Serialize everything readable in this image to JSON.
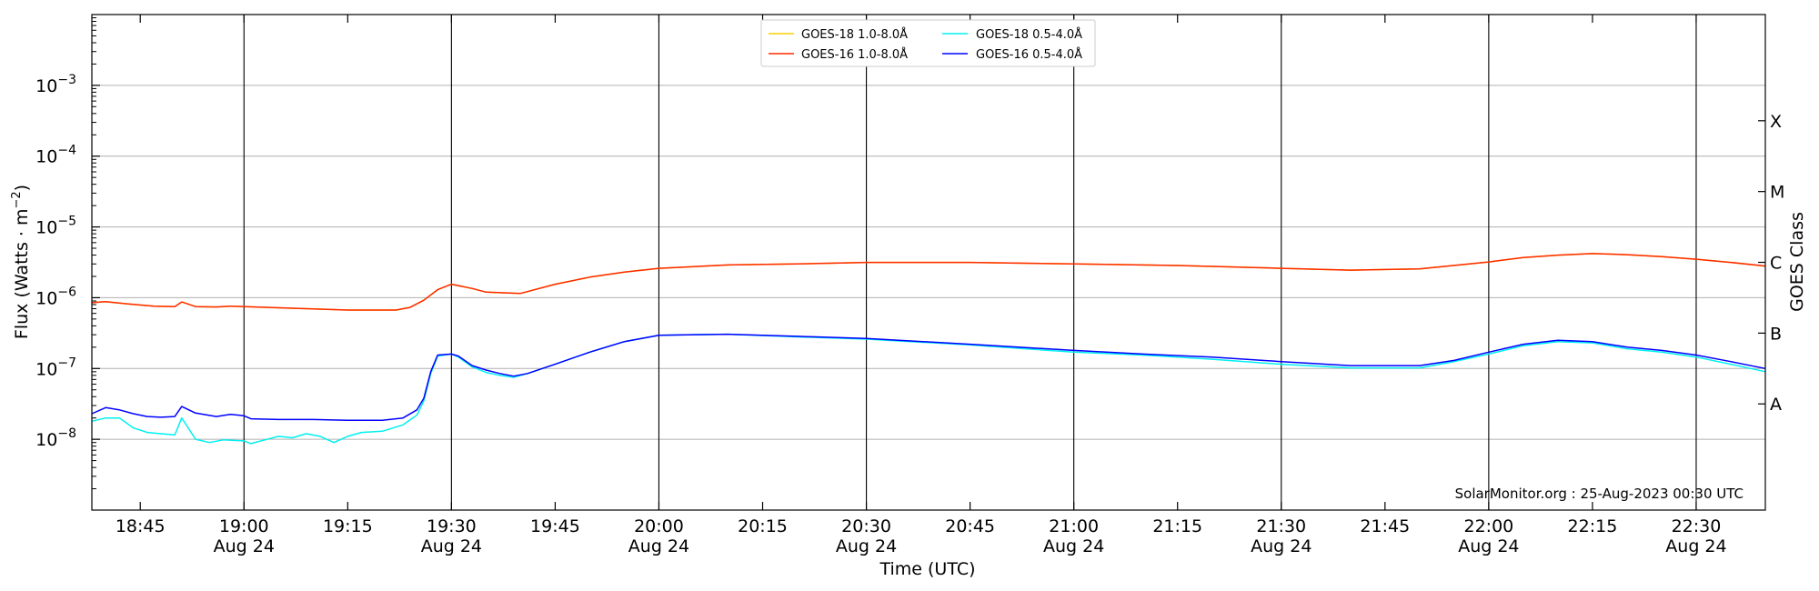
{
  "chart_data": {
    "type": "line",
    "title": "",
    "xlabel": "Time (UTC)",
    "ylabel": "Flux (Watts · m",
    "ylabel_sup": "−2",
    "ylabel_close": ")",
    "right_label": "GOES Class",
    "yscale": "log",
    "ylim": [
      1e-09,
      0.01
    ],
    "xlim": [
      "18:38",
      "22:40"
    ],
    "grid": "horizontal",
    "legend_position": "top-center",
    "x_ticks": [
      {
        "time": "18:45",
        "label": "18:45",
        "date": ""
      },
      {
        "time": "19:00",
        "label": "19:00",
        "date": "Aug 24"
      },
      {
        "time": "19:15",
        "label": "19:15",
        "date": ""
      },
      {
        "time": "19:30",
        "label": "19:30",
        "date": "Aug 24"
      },
      {
        "time": "19:45",
        "label": "19:45",
        "date": ""
      },
      {
        "time": "20:00",
        "label": "20:00",
        "date": "Aug 24"
      },
      {
        "time": "20:15",
        "label": "20:15",
        "date": ""
      },
      {
        "time": "20:30",
        "label": "20:30",
        "date": "Aug 24"
      },
      {
        "time": "20:45",
        "label": "20:45",
        "date": ""
      },
      {
        "time": "21:00",
        "label": "21:00",
        "date": "Aug 24"
      },
      {
        "time": "21:15",
        "label": "21:15",
        "date": ""
      },
      {
        "time": "21:30",
        "label": "21:30",
        "date": "Aug 24"
      },
      {
        "time": "21:45",
        "label": "21:45",
        "date": ""
      },
      {
        "time": "22:00",
        "label": "22:00",
        "date": "Aug 24"
      },
      {
        "time": "22:15",
        "label": "22:15",
        "date": ""
      },
      {
        "time": "22:30",
        "label": "22:30",
        "date": "Aug 24"
      }
    ],
    "vertical_lines": [
      "19:00",
      "19:30",
      "20:00",
      "20:30",
      "21:00",
      "21:30",
      "22:00",
      "22:30"
    ],
    "y_ticks": [
      {
        "value": 1e-08,
        "label_exp": "−8"
      },
      {
        "value": 1e-07,
        "label_exp": "−7"
      },
      {
        "value": 1e-06,
        "label_exp": "−6"
      },
      {
        "value": 1e-05,
        "label_exp": "−5"
      },
      {
        "value": 0.0001,
        "label_exp": "−4"
      },
      {
        "value": 0.001,
        "label_exp": "−3"
      }
    ],
    "goes_classes": [
      {
        "label": "A",
        "value": 3.16e-08
      },
      {
        "label": "B",
        "value": 3.16e-07
      },
      {
        "label": "C",
        "value": 3.16e-06
      },
      {
        "label": "M",
        "value": 3.16e-05
      },
      {
        "label": "X",
        "value": 0.000316
      }
    ],
    "annotation": "SolarMonitor.org : 25-Aug-2023 00:30 UTC",
    "series": [
      {
        "name": "GOES-18 1.0-8.0Å",
        "color": "#f5d000",
        "points": [
          [
            "18:38",
            8.5e-07
          ],
          [
            "18:40",
            8.8e-07
          ],
          [
            "18:43",
            8.2e-07
          ],
          [
            "18:47",
            7.6e-07
          ],
          [
            "18:50",
            7.5e-07
          ],
          [
            "18:51",
            8.7e-07
          ],
          [
            "18:53",
            7.5e-07
          ],
          [
            "18:56",
            7.4e-07
          ],
          [
            "18:58",
            7.6e-07
          ],
          [
            "19:05",
            7.2e-07
          ],
          [
            "19:15",
            6.7e-07
          ],
          [
            "19:22",
            6.7e-07
          ],
          [
            "19:24",
            7.3e-07
          ],
          [
            "19:26",
            9.2e-07
          ],
          [
            "19:28",
            1.3e-06
          ],
          [
            "19:30",
            1.55e-06
          ],
          [
            "19:33",
            1.35e-06
          ],
          [
            "19:35",
            1.2e-06
          ],
          [
            "19:40",
            1.15e-06
          ],
          [
            "19:45",
            1.55e-06
          ],
          [
            "19:50",
            1.95e-06
          ],
          [
            "19:55",
            2.3e-06
          ],
          [
            "20:00",
            2.6e-06
          ],
          [
            "20:10",
            2.9e-06
          ],
          [
            "20:20",
            3e-06
          ],
          [
            "20:30",
            3.15e-06
          ],
          [
            "20:45",
            3.15e-06
          ],
          [
            "21:00",
            3e-06
          ],
          [
            "21:15",
            2.85e-06
          ],
          [
            "21:30",
            2.6e-06
          ],
          [
            "21:40",
            2.45e-06
          ],
          [
            "21:50",
            2.55e-06
          ],
          [
            "22:00",
            3.2e-06
          ],
          [
            "22:05",
            3.7e-06
          ],
          [
            "22:10",
            4e-06
          ],
          [
            "22:15",
            4.2e-06
          ],
          [
            "22:20",
            4.05e-06
          ],
          [
            "22:25",
            3.8e-06
          ],
          [
            "22:30",
            3.5e-06
          ],
          [
            "22:35",
            3.15e-06
          ],
          [
            "22:40",
            2.8e-06
          ]
        ]
      },
      {
        "name": "GOES-16 1.0-8.0Å",
        "color": "#ff2a00",
        "points": [
          [
            "18:38",
            8.5e-07
          ],
          [
            "18:40",
            8.8e-07
          ],
          [
            "18:43",
            8.2e-07
          ],
          [
            "18:47",
            7.6e-07
          ],
          [
            "18:50",
            7.5e-07
          ],
          [
            "18:51",
            8.7e-07
          ],
          [
            "18:53",
            7.5e-07
          ],
          [
            "18:56",
            7.4e-07
          ],
          [
            "18:58",
            7.6e-07
          ],
          [
            "19:05",
            7.2e-07
          ],
          [
            "19:15",
            6.7e-07
          ],
          [
            "19:22",
            6.7e-07
          ],
          [
            "19:24",
            7.3e-07
          ],
          [
            "19:26",
            9.2e-07
          ],
          [
            "19:28",
            1.3e-06
          ],
          [
            "19:30",
            1.55e-06
          ],
          [
            "19:33",
            1.35e-06
          ],
          [
            "19:35",
            1.2e-06
          ],
          [
            "19:40",
            1.15e-06
          ],
          [
            "19:45",
            1.55e-06
          ],
          [
            "19:50",
            1.95e-06
          ],
          [
            "19:55",
            2.3e-06
          ],
          [
            "20:00",
            2.6e-06
          ],
          [
            "20:10",
            2.9e-06
          ],
          [
            "20:20",
            3e-06
          ],
          [
            "20:30",
            3.15e-06
          ],
          [
            "20:45",
            3.15e-06
          ],
          [
            "21:00",
            3e-06
          ],
          [
            "21:15",
            2.85e-06
          ],
          [
            "21:30",
            2.6e-06
          ],
          [
            "21:40",
            2.45e-06
          ],
          [
            "21:50",
            2.55e-06
          ],
          [
            "22:00",
            3.2e-06
          ],
          [
            "22:05",
            3.7e-06
          ],
          [
            "22:10",
            4e-06
          ],
          [
            "22:15",
            4.2e-06
          ],
          [
            "22:20",
            4.05e-06
          ],
          [
            "22:25",
            3.8e-06
          ],
          [
            "22:30",
            3.5e-06
          ],
          [
            "22:35",
            3.15e-06
          ],
          [
            "22:40",
            2.8e-06
          ]
        ]
      },
      {
        "name": "GOES-18 0.5-4.0Å",
        "color": "#00f0f0",
        "points": [
          [
            "18:38",
            1.8e-08
          ],
          [
            "18:40",
            2e-08
          ],
          [
            "18:42",
            2e-08
          ],
          [
            "18:44",
            1.45e-08
          ],
          [
            "18:46",
            1.25e-08
          ],
          [
            "18:48",
            1.2e-08
          ],
          [
            "18:50",
            1.15e-08
          ],
          [
            "18:51",
            2e-08
          ],
          [
            "18:53",
            1e-08
          ],
          [
            "18:55",
            9e-09
          ],
          [
            "18:57",
            9.8e-09
          ],
          [
            "19:00",
            9.5e-09
          ],
          [
            "19:01",
            8.7e-09
          ],
          [
            "19:03",
            9.8e-09
          ],
          [
            "19:05",
            1.1e-08
          ],
          [
            "19:07",
            1.05e-08
          ],
          [
            "19:09",
            1.2e-08
          ],
          [
            "19:11",
            1.1e-08
          ],
          [
            "19:13",
            9e-09
          ],
          [
            "19:15",
            1.1e-08
          ],
          [
            "19:17",
            1.25e-08
          ],
          [
            "19:20",
            1.3e-08
          ],
          [
            "19:23",
            1.6e-08
          ],
          [
            "19:25",
            2.2e-08
          ],
          [
            "19:26",
            3.5e-08
          ],
          [
            "19:27",
            8.5e-08
          ],
          [
            "19:28",
            1.5e-07
          ],
          [
            "19:30",
            1.6e-07
          ],
          [
            "19:31",
            1.45e-07
          ],
          [
            "19:33",
            1.05e-07
          ],
          [
            "19:35",
            8.8e-08
          ],
          [
            "19:37",
            8e-08
          ],
          [
            "19:39",
            7.5e-08
          ],
          [
            "19:41",
            8.5e-08
          ],
          [
            "19:45",
            1.15e-07
          ],
          [
            "19:50",
            1.7e-07
          ],
          [
            "19:55",
            2.4e-07
          ],
          [
            "20:00",
            2.95e-07
          ],
          [
            "20:10",
            3.05e-07
          ],
          [
            "20:20",
            2.8e-07
          ],
          [
            "20:30",
            2.6e-07
          ],
          [
            "20:45",
            2.15e-07
          ],
          [
            "21:00",
            1.7e-07
          ],
          [
            "21:10",
            1.55e-07
          ],
          [
            "21:20",
            1.35e-07
          ],
          [
            "21:30",
            1.15e-07
          ],
          [
            "21:40",
            1.02e-07
          ],
          [
            "21:50",
            1.02e-07
          ],
          [
            "21:55",
            1.25e-07
          ],
          [
            "22:00",
            1.6e-07
          ],
          [
            "22:05",
            2.1e-07
          ],
          [
            "22:10",
            2.4e-07
          ],
          [
            "22:15",
            2.3e-07
          ],
          [
            "22:20",
            1.9e-07
          ],
          [
            "22:25",
            1.7e-07
          ],
          [
            "22:30",
            1.45e-07
          ],
          [
            "22:35",
            1.15e-07
          ],
          [
            "22:40",
            9e-08
          ]
        ]
      },
      {
        "name": "GOES-16 0.5-4.0Å",
        "color": "#0000ff",
        "points": [
          [
            "18:38",
            2.3e-08
          ],
          [
            "18:40",
            2.8e-08
          ],
          [
            "18:42",
            2.6e-08
          ],
          [
            "18:44",
            2.3e-08
          ],
          [
            "18:46",
            2.1e-08
          ],
          [
            "18:48",
            2.05e-08
          ],
          [
            "18:50",
            2.1e-08
          ],
          [
            "18:51",
            2.9e-08
          ],
          [
            "18:53",
            2.35e-08
          ],
          [
            "18:56",
            2.1e-08
          ],
          [
            "18:58",
            2.25e-08
          ],
          [
            "19:00",
            2.15e-08
          ],
          [
            "19:01",
            1.95e-08
          ],
          [
            "19:05",
            1.9e-08
          ],
          [
            "19:10",
            1.9e-08
          ],
          [
            "19:15",
            1.85e-08
          ],
          [
            "19:20",
            1.85e-08
          ],
          [
            "19:23",
            2e-08
          ],
          [
            "19:25",
            2.6e-08
          ],
          [
            "19:26",
            3.8e-08
          ],
          [
            "19:27",
            9e-08
          ],
          [
            "19:28",
            1.55e-07
          ],
          [
            "19:30",
            1.6e-07
          ],
          [
            "19:31",
            1.5e-07
          ],
          [
            "19:33",
            1.1e-07
          ],
          [
            "19:35",
            9.5e-08
          ],
          [
            "19:37",
            8.5e-08
          ],
          [
            "19:39",
            7.8e-08
          ],
          [
            "19:41",
            8.5e-08
          ],
          [
            "19:45",
            1.15e-07
          ],
          [
            "19:50",
            1.7e-07
          ],
          [
            "19:55",
            2.4e-07
          ],
          [
            "20:00",
            2.95e-07
          ],
          [
            "20:10",
            3.05e-07
          ],
          [
            "20:20",
            2.85e-07
          ],
          [
            "20:30",
            2.65e-07
          ],
          [
            "20:45",
            2.2e-07
          ],
          [
            "21:00",
            1.8e-07
          ],
          [
            "21:10",
            1.6e-07
          ],
          [
            "21:20",
            1.45e-07
          ],
          [
            "21:30",
            1.25e-07
          ],
          [
            "21:40",
            1.1e-07
          ],
          [
            "21:50",
            1.1e-07
          ],
          [
            "21:55",
            1.3e-07
          ],
          [
            "22:00",
            1.7e-07
          ],
          [
            "22:05",
            2.2e-07
          ],
          [
            "22:10",
            2.5e-07
          ],
          [
            "22:15",
            2.4e-07
          ],
          [
            "22:20",
            2e-07
          ],
          [
            "22:25",
            1.8e-07
          ],
          [
            "22:30",
            1.55e-07
          ],
          [
            "22:35",
            1.25e-07
          ],
          [
            "22:40",
            1e-07
          ]
        ]
      }
    ]
  }
}
